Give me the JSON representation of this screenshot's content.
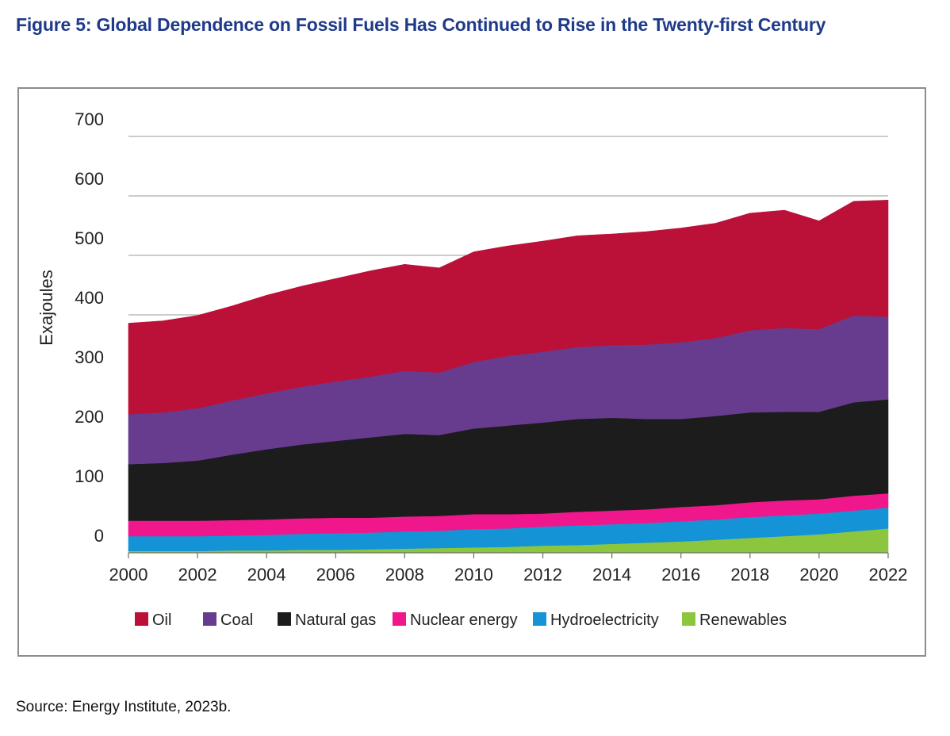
{
  "header": {
    "title": "Figure 5: Global Dependence on Fossil Fuels Has Continued to Rise in the Twenty-first Century"
  },
  "footer": {
    "source": "Source: Energy Institute, 2023b."
  },
  "colors": {
    "title": "#1f3a8a",
    "oil": "#bb1038",
    "coal": "#673c8f",
    "natural_gas": "#1c1c1c",
    "nuclear": "#f0168c",
    "hydro": "#1493d6",
    "renewables": "#8cc63f",
    "grid": "#9a9a9a",
    "frame": "#8c8c8c"
  },
  "chart_data": {
    "type": "area",
    "stacked": true,
    "ylabel": "Exajoules",
    "xlabel": "",
    "ylim": [
      0,
      700
    ],
    "yticks": [
      0,
      100,
      200,
      300,
      400,
      500,
      600,
      700
    ],
    "xlim": [
      2000,
      2022
    ],
    "xticks": [
      2000,
      2002,
      2004,
      2006,
      2008,
      2010,
      2012,
      2014,
      2016,
      2018,
      2020,
      2022
    ],
    "grid": true,
    "legend_position": "bottom",
    "x": [
      2000,
      2001,
      2002,
      2003,
      2004,
      2005,
      2006,
      2007,
      2008,
      2009,
      2010,
      2011,
      2012,
      2013,
      2014,
      2015,
      2016,
      2017,
      2018,
      2019,
      2020,
      2021,
      2022
    ],
    "series": [
      {
        "name": "Renewables",
        "color": "#8cc63f",
        "values": [
          3,
          3,
          3,
          4,
          4,
          5,
          5,
          6,
          7,
          8,
          9,
          10,
          12,
          13,
          15,
          17,
          19,
          22,
          25,
          28,
          31,
          36,
          41
        ]
      },
      {
        "name": "Hydroelectricity",
        "color": "#1493d6",
        "values": [
          25,
          25,
          25,
          25,
          26,
          27,
          28,
          28,
          29,
          29,
          31,
          31,
          32,
          33,
          33,
          33,
          34,
          34,
          35,
          35,
          35,
          35,
          35
        ]
      },
      {
        "name": "Nuclear energy",
        "color": "#f0168c",
        "values": [
          26,
          26,
          26,
          26,
          26,
          26,
          26,
          25,
          25,
          25,
          25,
          24,
          22,
          23,
          23,
          23,
          24,
          24,
          25,
          25,
          24,
          25,
          24
        ]
      },
      {
        "name": "Natural gas",
        "color": "#1c1c1c",
        "values": [
          95,
          97,
          101,
          110,
          118,
          124,
          129,
          135,
          139,
          136,
          144,
          149,
          153,
          156,
          156,
          152,
          148,
          150,
          151,
          149,
          147,
          157,
          158
        ]
      },
      {
        "name": "Coal",
        "color": "#673c8f",
        "values": [
          84,
          85,
          88,
          91,
          94,
          97,
          100,
          102,
          106,
          105,
          112,
          117,
          119,
          121,
          122,
          125,
          129,
          131,
          138,
          141,
          139,
          146,
          139
        ]
      },
      {
        "name": "Oil",
        "color": "#bb1038",
        "values": [
          153,
          154,
          156,
          159,
          165,
          169,
          173,
          178,
          179,
          176,
          185,
          185,
          186,
          187,
          187,
          190,
          192,
          193,
          197,
          198,
          182,
          192,
          196
        ]
      }
    ],
    "legend_order": [
      "Oil",
      "Coal",
      "Natural gas",
      "Nuclear energy",
      "Hydroelectricity",
      "Renewables"
    ]
  }
}
